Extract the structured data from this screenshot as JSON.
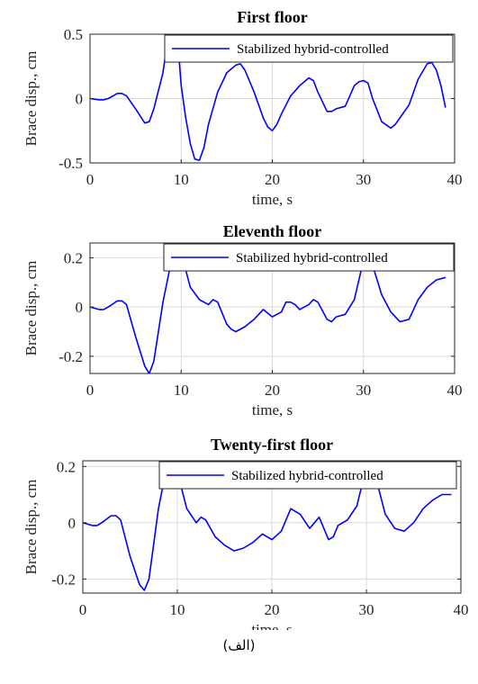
{
  "caption": "(الف)",
  "chart_data": [
    {
      "type": "line",
      "title": "First floor",
      "xlabel": "time, s",
      "ylabel": "Brace disp., cm",
      "xlim": [
        0,
        40
      ],
      "ylim": [
        -0.5,
        0.5
      ],
      "xticks": [
        0,
        10,
        20,
        30,
        40
      ],
      "yticks": [
        -0.5,
        0,
        0.5
      ],
      "yticklabels": [
        "-0.5",
        "0",
        "0.5"
      ],
      "grid": true,
      "legend_position": "top-right",
      "series_color": "#0000ff",
      "series": [
        {
          "name": "Stabilized hybrid-controlled",
          "x": [
            0,
            1,
            1.5,
            2,
            3,
            3.5,
            4,
            5,
            6,
            6.5,
            7,
            8,
            8.6,
            9,
            9.5,
            10,
            10.5,
            11,
            11.5,
            12,
            12.5,
            13,
            14,
            15,
            16,
            16.5,
            17,
            18,
            19,
            19.5,
            20,
            20.5,
            21,
            22,
            23,
            24,
            24.5,
            25,
            26,
            26.5,
            27,
            28,
            29,
            29.5,
            30,
            30.5,
            31,
            32,
            33,
            33.5,
            34,
            35,
            36,
            37,
            37.5,
            38,
            38.5,
            39
          ],
          "y": [
            0,
            -0.01,
            -0.01,
            0,
            0.04,
            0.04,
            0.02,
            -0.08,
            -0.19,
            -0.18,
            -0.08,
            0.2,
            0.5,
            0.62,
            0.55,
            0.1,
            -0.15,
            -0.35,
            -0.47,
            -0.48,
            -0.38,
            -0.2,
            0.05,
            0.2,
            0.26,
            0.27,
            0.22,
            0.05,
            -0.15,
            -0.22,
            -0.25,
            -0.2,
            -0.12,
            0.02,
            0.1,
            0.16,
            0.14,
            0.05,
            -0.1,
            -0.1,
            -0.08,
            -0.06,
            0.1,
            0.13,
            0.14,
            0.12,
            0,
            -0.18,
            -0.23,
            -0.2,
            -0.15,
            -0.05,
            0.15,
            0.27,
            0.28,
            0.22,
            0.1,
            -0.07
          ]
        }
      ]
    },
    {
      "type": "line",
      "title": "Eleventh floor",
      "xlabel": "time, s",
      "ylabel": "Brace disp., cm",
      "xlim": [
        0,
        40
      ],
      "ylim": [
        -0.27,
        0.26
      ],
      "xticks": [
        0,
        10,
        20,
        30,
        40
      ],
      "yticks": [
        -0.2,
        0,
        0.2
      ],
      "yticklabels": [
        "-0.2",
        "0",
        "0.2"
      ],
      "grid": true,
      "legend_position": "top-right",
      "series_color": "#0000ff",
      "series": [
        {
          "name": "Stabilized hybrid-controlled",
          "x": [
            0,
            1,
            1.5,
            2,
            3,
            3.5,
            4,
            5,
            6,
            6.5,
            7,
            8,
            9,
            9.5,
            10,
            10.5,
            11,
            12,
            13,
            13.5,
            14,
            15,
            15.5,
            16,
            17,
            18,
            19,
            20,
            21,
            21.5,
            22,
            22.5,
            23,
            24,
            24.5,
            25,
            26,
            26.5,
            27,
            28,
            29,
            30,
            30.5,
            31,
            32,
            33,
            33.5,
            34,
            35,
            36,
            37,
            38,
            39
          ],
          "y": [
            0,
            -0.01,
            -0.01,
            0,
            0.025,
            0.025,
            0.01,
            -0.12,
            -0.24,
            -0.27,
            -0.22,
            0.02,
            0.2,
            0.3,
            0.2,
            0.15,
            0.08,
            0.03,
            0.01,
            0.03,
            0.02,
            -0.07,
            -0.09,
            -0.1,
            -0.08,
            -0.05,
            -0.01,
            -0.04,
            -0.02,
            0.02,
            0.02,
            0.01,
            -0.01,
            0.01,
            0.03,
            0.02,
            -0.05,
            -0.06,
            -0.04,
            -0.03,
            0.03,
            0.19,
            0.23,
            0.17,
            0.05,
            -0.02,
            -0.04,
            -0.06,
            -0.05,
            0.03,
            0.08,
            0.11,
            0.12
          ]
        }
      ]
    },
    {
      "type": "line",
      "title": "Twenty-first floor",
      "xlabel": "time, s",
      "ylabel": "Brace disp., cm",
      "xlim": [
        0,
        40
      ],
      "ylim": [
        -0.25,
        0.22
      ],
      "xticks": [
        0,
        10,
        20,
        30,
        40
      ],
      "yticks": [
        -0.2,
        0,
        0.2
      ],
      "yticklabels": [
        "-0.2",
        "0",
        "0.2"
      ],
      "grid": true,
      "legend_position": "top-right",
      "series_color": "#0000ff",
      "series": [
        {
          "name": "Stabilized hybrid-controlled",
          "x": [
            0,
            1,
            1.5,
            2,
            3,
            3.5,
            4,
            5,
            6,
            6.5,
            7,
            8,
            9,
            9.5,
            10,
            11,
            12,
            12.5,
            13,
            14,
            15,
            16,
            17,
            18,
            19,
            20,
            21,
            22,
            23,
            24,
            24.5,
            25,
            26,
            26.5,
            27,
            28,
            29,
            30,
            30.5,
            31,
            32,
            33,
            34,
            35,
            36,
            37,
            38,
            39
          ],
          "y": [
            0,
            -0.01,
            -0.01,
            0,
            0.025,
            0.025,
            0.01,
            -0.12,
            -0.22,
            -0.24,
            -0.2,
            0.05,
            0.22,
            0.28,
            0.18,
            0.05,
            0,
            0.02,
            0.01,
            -0.05,
            -0.08,
            -0.1,
            -0.09,
            -0.07,
            -0.04,
            -0.06,
            -0.03,
            0.05,
            0.03,
            -0.02,
            0,
            0.02,
            -0.06,
            -0.05,
            -0.01,
            0.01,
            0.06,
            0.2,
            0.25,
            0.16,
            0.03,
            -0.02,
            -0.03,
            0,
            0.05,
            0.08,
            0.1,
            0.1
          ]
        }
      ]
    }
  ]
}
